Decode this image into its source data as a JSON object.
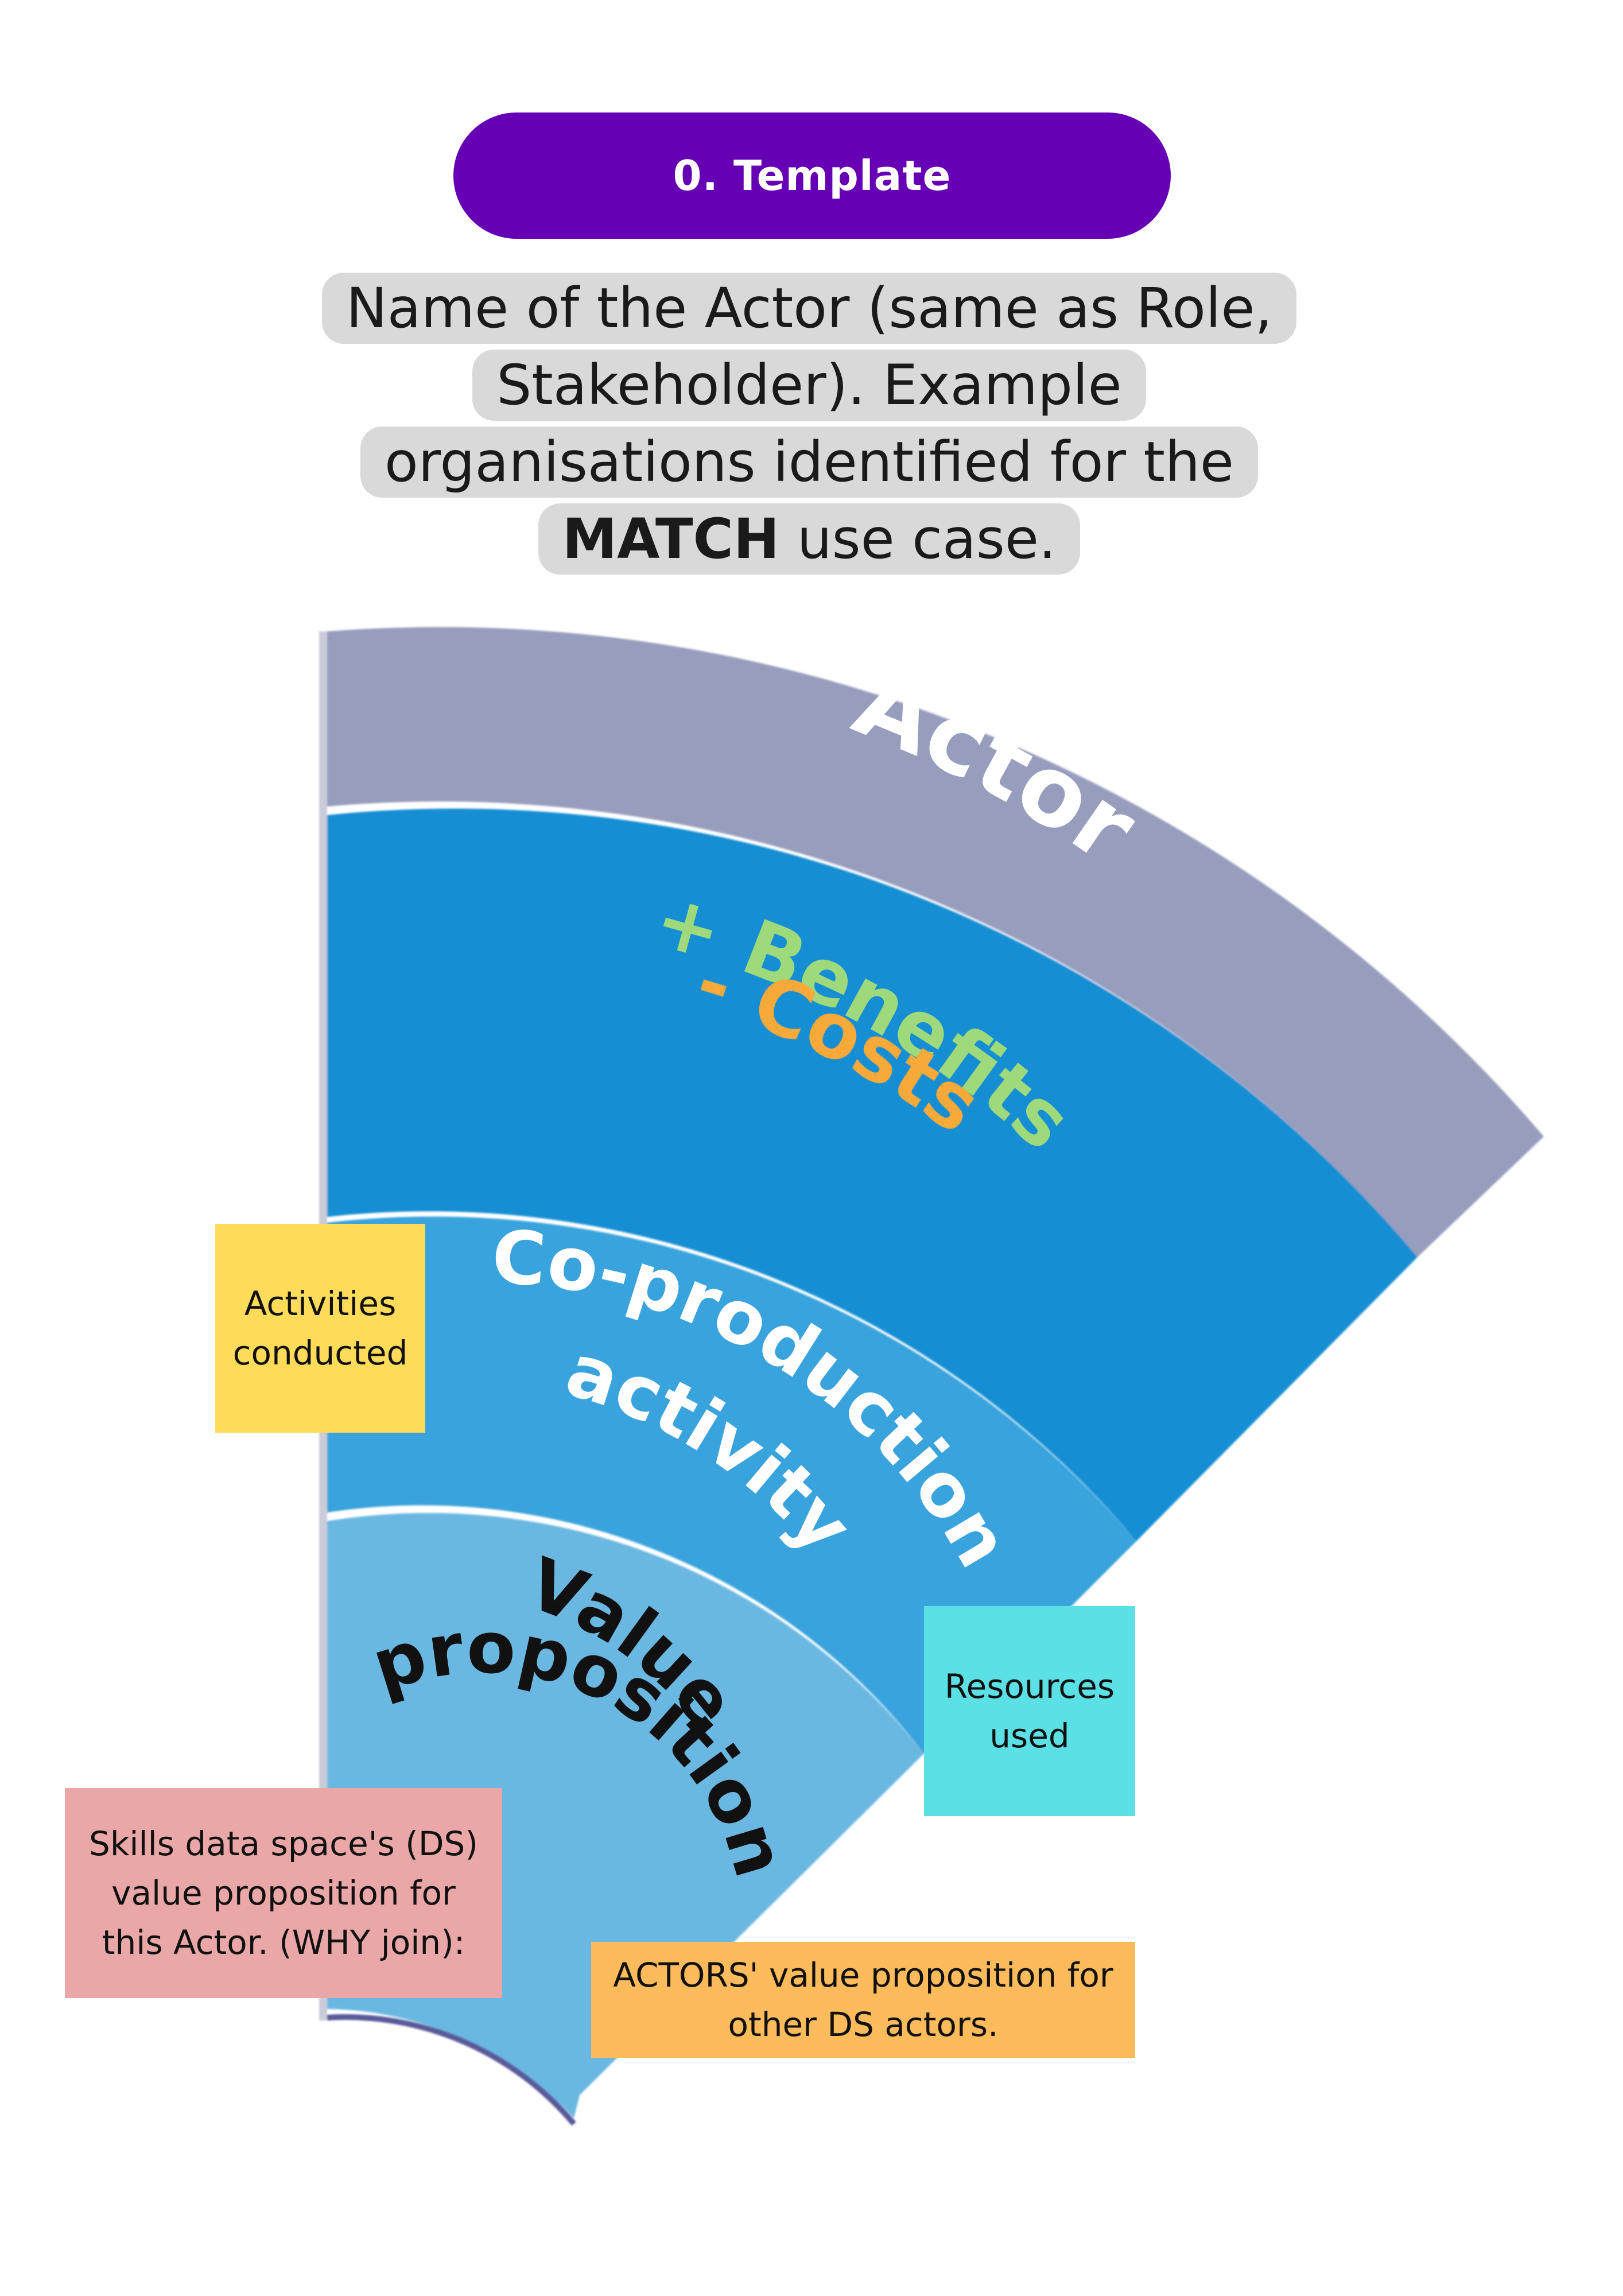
{
  "header": {
    "title": "0. Template",
    "subtitle_prefix": "Name of the Actor (same as Role, Stakeholder). Example organisations identified for the ",
    "subtitle_bold": "MATCH",
    "subtitle_suffix": " use case."
  },
  "diagram": {
    "actor_label": "Actor",
    "benefits_label": "+ Benefits",
    "costs_label": "- Costs",
    "coproduction_line1": "Co-production",
    "coproduction_line2": "activity",
    "value_line1": "Value",
    "value_line2": "proposition",
    "colors": {
      "actor_band": "#979dbd",
      "benefits_band": "#168ed3",
      "coproduction_band": "#37a3dc",
      "value_band": "#6ab8e2",
      "benefits_text": "#9ed97c",
      "costs_text": "#f7a93a",
      "value_text": "#111111",
      "pill": "#6600b4"
    }
  },
  "notes": {
    "activities": "Activities conducted",
    "resources": "Resources used",
    "skills": "Skills data space's (DS) value proposition for this Actor. (WHY join):",
    "actors_vp": "ACTORS' value proposition for other DS actors.",
    "colors": {
      "activities": "#fedc5a",
      "resources": "#5be0e6",
      "skills": "#eaa7a7",
      "actors_vp": "#fdbb5b"
    }
  }
}
